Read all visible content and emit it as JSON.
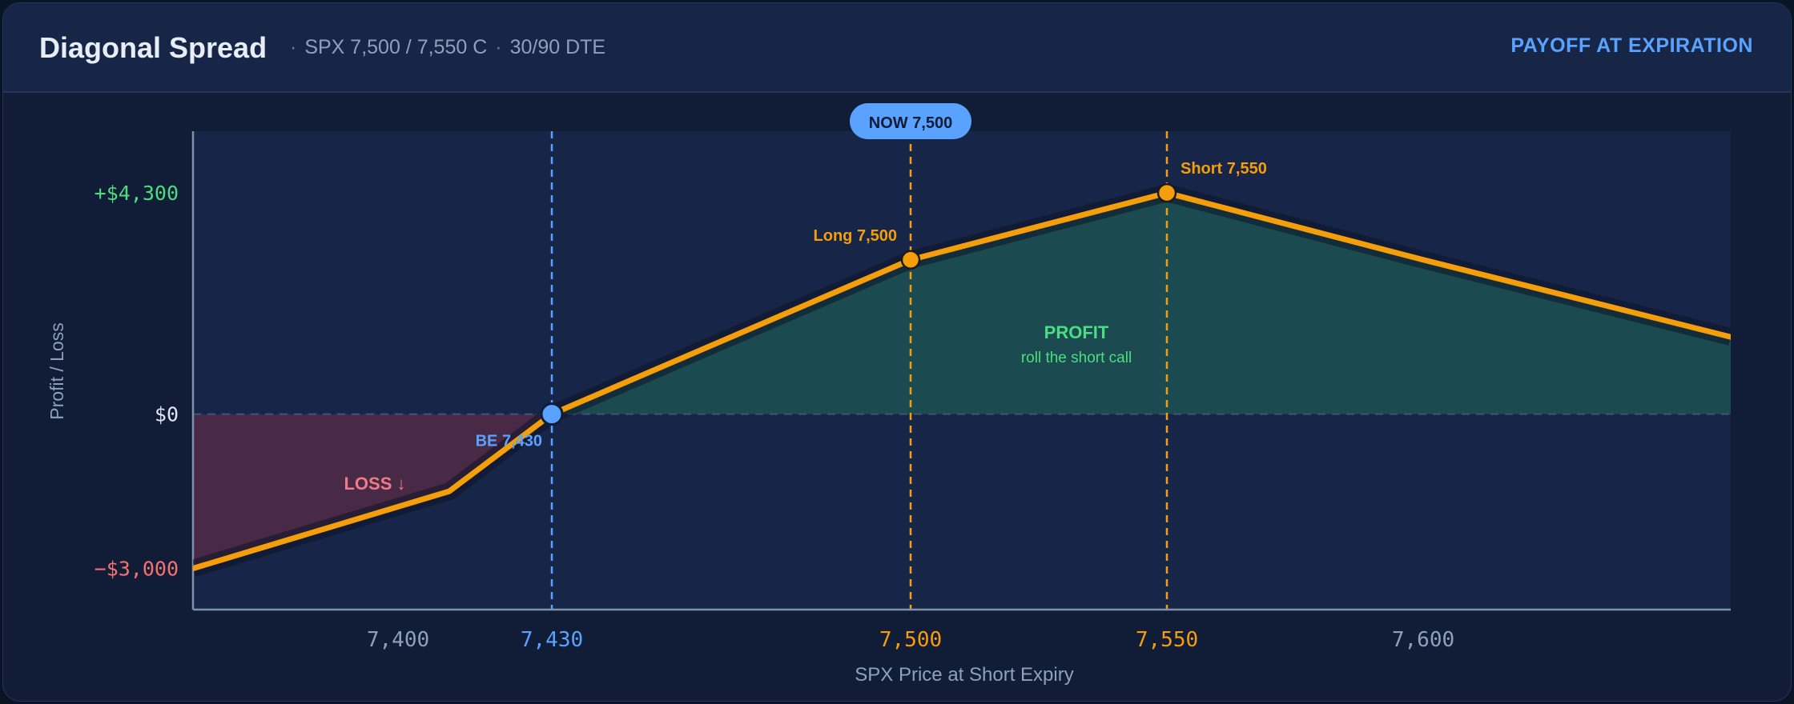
{
  "header": {
    "title": "Diagonal Spread",
    "subtitle_parts": [
      "SPX 7,500 / 7,550 C",
      "30/90 DTE"
    ],
    "mode_label": "PAYOFF AT EXPIRATION"
  },
  "colors": {
    "payoff_line": "#f59e0b",
    "profit_fill": "#1f6b5a",
    "loss_fill": "#7a2e44",
    "breakeven": "#5aa2ff",
    "strike": "#f59e0b",
    "positive_label": "#4ade80",
    "negative_label": "#f87171",
    "zero_label": "#dde6f3"
  },
  "chart_data": {
    "type": "line",
    "xlabel": "SPX Price at Short Expiry",
    "ylabel": "Profit / Loss",
    "xlim": [
      7360,
      7660
    ],
    "ylim": [
      -3800,
      5500
    ],
    "x_ticks": [
      {
        "value": 7400,
        "label": "7,400",
        "style": "default"
      },
      {
        "value": 7430,
        "label": "7,430",
        "style": "breakeven"
      },
      {
        "value": 7500,
        "label": "7,500",
        "style": "strike"
      },
      {
        "value": 7550,
        "label": "7,550",
        "style": "strike"
      },
      {
        "value": 7600,
        "label": "7,600",
        "style": "default"
      }
    ],
    "y_ticks": [
      {
        "value": 4300,
        "label": "+$4,300",
        "style": "positive"
      },
      {
        "value": 0,
        "label": "$0",
        "style": "zero"
      },
      {
        "value": -3000,
        "label": "−$3,000",
        "style": "negative"
      }
    ],
    "series": [
      {
        "points": [
          {
            "x": 7360,
            "y": -3000
          },
          {
            "x": 7410,
            "y": -1500
          },
          {
            "x": 7430,
            "y": 0
          },
          {
            "x": 7500,
            "y": 3000
          },
          {
            "x": 7550,
            "y": 4300
          },
          {
            "x": 7600,
            "y": 3000
          },
          {
            "x": 7660,
            "y": 1500
          }
        ]
      }
    ],
    "current_price": {
      "x": 7500,
      "label": "NOW 7,500"
    },
    "markers": [
      {
        "x": 7430,
        "y": 0,
        "label": "BE 7,430",
        "kind": "breakeven"
      },
      {
        "x": 7500,
        "y": 3000,
        "label": "Long 7,500",
        "kind": "strike"
      },
      {
        "x": 7550,
        "y": 4300,
        "label": "Short 7,550",
        "kind": "strike"
      }
    ],
    "annotations": {
      "profit_title": "PROFIT",
      "profit_note": "roll the short call",
      "loss_title": "LOSS ↓"
    }
  }
}
